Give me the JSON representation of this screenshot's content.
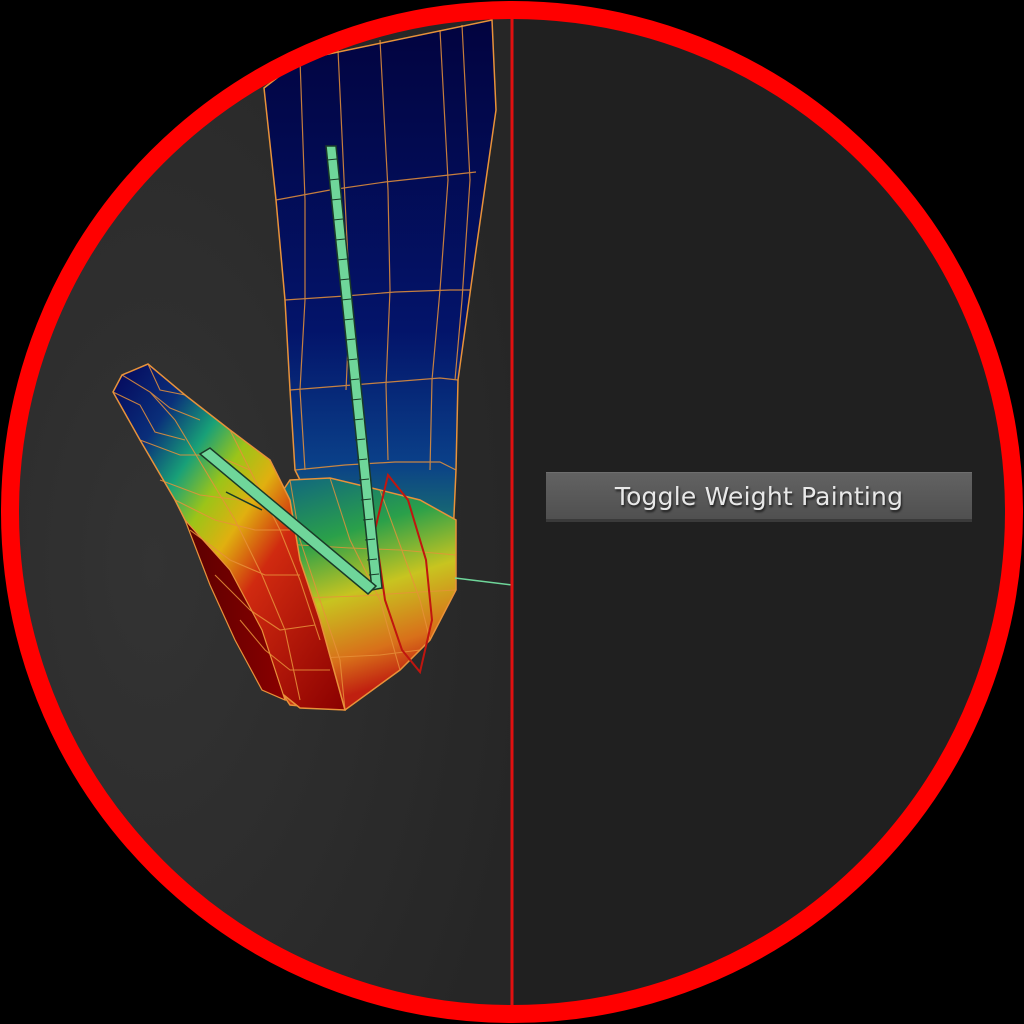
{
  "tooltip": {
    "text": "Toggle Weight Painting"
  },
  "viewport": {
    "mode": "weight-paint",
    "background_color": "#2a2a2a",
    "right_panel_color": "#202020",
    "frame_color": "#ff0000",
    "wire_color": "#e8923a",
    "bone_color": "#6fd69a",
    "icons": [
      "bone-icon",
      "bone-icon",
      "envelope-icon"
    ]
  }
}
